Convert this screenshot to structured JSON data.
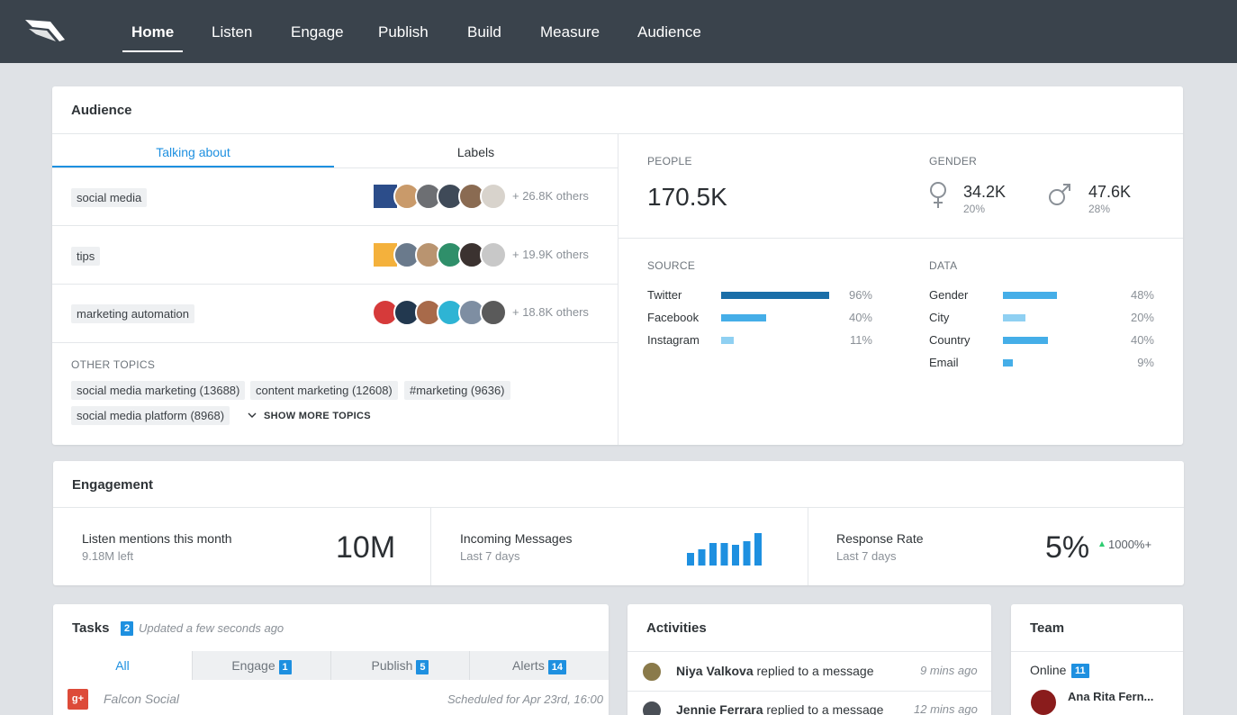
{
  "nav": {
    "items": [
      "Home",
      "Listen",
      "Engage",
      "Publish",
      "Build",
      "Measure",
      "Audience"
    ]
  },
  "audience": {
    "title": "Audience",
    "tabs": [
      "Talking about",
      "Labels"
    ],
    "topics": [
      {
        "label": "social media",
        "others": "+ 26.8K others"
      },
      {
        "label": "tips",
        "others": "+ 19.9K others"
      },
      {
        "label": "marketing automation",
        "others": "+ 18.8K others"
      }
    ],
    "other_topics_label": "OTHER TOPICS",
    "other_topics": [
      "social media marketing (13688)",
      "content marketing (12608)",
      "#marketing (9636)",
      "social media platform (8968)"
    ],
    "show_more": "SHOW MORE TOPICS",
    "people_label": "PEOPLE",
    "people_value": "170.5K",
    "gender_label": "GENDER",
    "female_value": "34.2K",
    "female_pct": "20%",
    "male_value": "47.6K",
    "male_pct": "28%",
    "source_label": "SOURCE",
    "sources": [
      {
        "name": "Twitter",
        "pct": "96%",
        "value": 96
      },
      {
        "name": "Facebook",
        "pct": "40%",
        "value": 40
      },
      {
        "name": "Instagram",
        "pct": "11%",
        "value": 11
      }
    ],
    "data_label": "DATA",
    "data_rows": [
      {
        "name": "Gender",
        "pct": "48%",
        "value": 48
      },
      {
        "name": "City",
        "pct": "20%",
        "value": 20
      },
      {
        "name": "Country",
        "pct": "40%",
        "value": 40
      },
      {
        "name": "Email",
        "pct": "9%",
        "value": 9
      }
    ]
  },
  "engagement": {
    "title": "Engagement",
    "mentions_label": "Listen mentions this month",
    "mentions_sub": "9.18M left",
    "mentions_value": "10M",
    "messages_label": "Incoming Messages",
    "messages_sub": "Last 7 days",
    "messages_bars": [
      12,
      16,
      22,
      22,
      20,
      24,
      32
    ],
    "response_label": "Response Rate",
    "response_sub": "Last 7 days",
    "response_value": "5%",
    "response_delta": "1000%+"
  },
  "tasks": {
    "title": "Tasks",
    "count": "2",
    "updated": "Updated a few seconds ago",
    "tabs": [
      {
        "label": "All",
        "count": ""
      },
      {
        "label": "Engage",
        "count": "1"
      },
      {
        "label": "Publish",
        "count": "5"
      },
      {
        "label": "Alerts",
        "count": "14"
      }
    ],
    "row_name": "Falcon Social",
    "row_schedule": "Scheduled for Apr 23rd, 16:00"
  },
  "activities": {
    "title": "Activities",
    "items": [
      {
        "name": "Niya Valkova",
        "action": "replied to a message",
        "time": "9 mins ago"
      },
      {
        "name": "Jennie Ferrara",
        "action": "replied to a message",
        "time": "12 mins ago"
      }
    ]
  },
  "team": {
    "title": "Team",
    "online_label": "Online",
    "online_count": "11",
    "member": "Ana Rita Fern..."
  },
  "colors": {
    "accent": "#1e90e0",
    "bar_dark": "#1a6ea8",
    "bar_mid": "#45aee8",
    "bar_light": "#8fd0f2",
    "nav_bg": "#3a434c"
  }
}
